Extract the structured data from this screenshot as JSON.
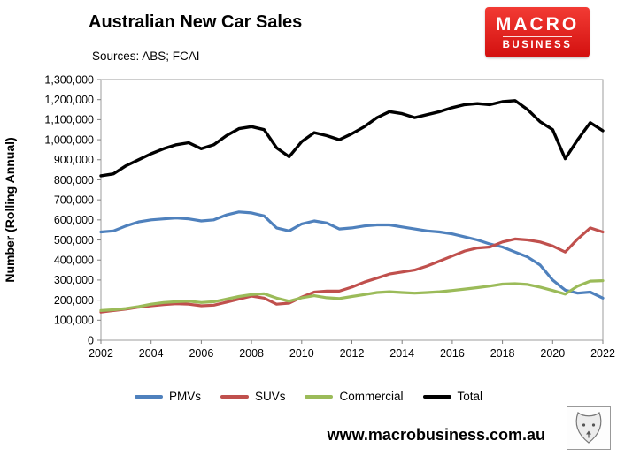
{
  "header": {
    "title": "Australian New Car Sales",
    "subtitle": "Sources: ABS; FCAI",
    "logo": {
      "line1": "MACRO",
      "line2": "BUSINESS",
      "bg_color": "#e8262a"
    }
  },
  "chart_data": {
    "type": "line",
    "title": "Australian New Car Sales",
    "subtitle": "Sources: ABS; FCAI",
    "xlabel": "",
    "ylabel": "Number (Rolling Annual)",
    "ylim": [
      0,
      1300000
    ],
    "ytick_step": 100000,
    "xticks": [
      2002,
      2004,
      2006,
      2008,
      2010,
      2012,
      2014,
      2016,
      2018,
      2020,
      2022
    ],
    "grid": false,
    "legend_position": "bottom",
    "x": [
      2002,
      2002.5,
      2003,
      2003.5,
      2004,
      2004.5,
      2005,
      2005.5,
      2006,
      2006.5,
      2007,
      2007.5,
      2008,
      2008.5,
      2009,
      2009.5,
      2010,
      2010.5,
      2011,
      2011.5,
      2012,
      2012.5,
      2013,
      2013.5,
      2014,
      2014.5,
      2015,
      2015.5,
      2016,
      2016.5,
      2017,
      2017.5,
      2018,
      2018.5,
      2019,
      2019.5,
      2020,
      2020.5,
      2021,
      2021.5,
      2022
    ],
    "series": [
      {
        "name": "PMVs",
        "color": "#4F81BD",
        "values": [
          540000,
          545000,
          570000,
          590000,
          600000,
          605000,
          610000,
          605000,
          595000,
          600000,
          625000,
          640000,
          635000,
          620000,
          560000,
          545000,
          580000,
          595000,
          585000,
          555000,
          560000,
          570000,
          575000,
          575000,
          565000,
          555000,
          545000,
          540000,
          530000,
          515000,
          500000,
          480000,
          465000,
          440000,
          415000,
          375000,
          300000,
          250000,
          235000,
          240000,
          210000
        ]
      },
      {
        "name": "SUVs",
        "color": "#C0504D",
        "values": [
          140000,
          148000,
          155000,
          165000,
          172000,
          178000,
          182000,
          180000,
          172000,
          175000,
          190000,
          205000,
          220000,
          210000,
          180000,
          185000,
          215000,
          240000,
          245000,
          245000,
          265000,
          290000,
          310000,
          330000,
          340000,
          350000,
          370000,
          395000,
          420000,
          445000,
          460000,
          465000,
          490000,
          505000,
          500000,
          490000,
          470000,
          440000,
          505000,
          560000,
          540000
        ]
      },
      {
        "name": "Commercial",
        "color": "#9BBB59",
        "values": [
          148000,
          152000,
          158000,
          168000,
          180000,
          188000,
          192000,
          195000,
          188000,
          192000,
          205000,
          218000,
          228000,
          232000,
          210000,
          195000,
          212000,
          222000,
          212000,
          208000,
          218000,
          228000,
          238000,
          242000,
          238000,
          235000,
          238000,
          242000,
          248000,
          255000,
          262000,
          270000,
          280000,
          282000,
          278000,
          265000,
          248000,
          230000,
          270000,
          295000,
          297000
        ]
      },
      {
        "name": "Total",
        "color": "#000000",
        "values": [
          820000,
          830000,
          870000,
          900000,
          930000,
          955000,
          975000,
          985000,
          955000,
          975000,
          1020000,
          1055000,
          1065000,
          1050000,
          960000,
          915000,
          990000,
          1035000,
          1020000,
          1000000,
          1030000,
          1065000,
          1110000,
          1140000,
          1130000,
          1110000,
          1125000,
          1140000,
          1160000,
          1175000,
          1180000,
          1175000,
          1190000,
          1195000,
          1150000,
          1090000,
          1050000,
          905000,
          1000000,
          1085000,
          1045000
        ]
      }
    ]
  },
  "footer": {
    "website": "www.macrobusiness.com.au",
    "wolf_logo": "wolf-logo"
  }
}
